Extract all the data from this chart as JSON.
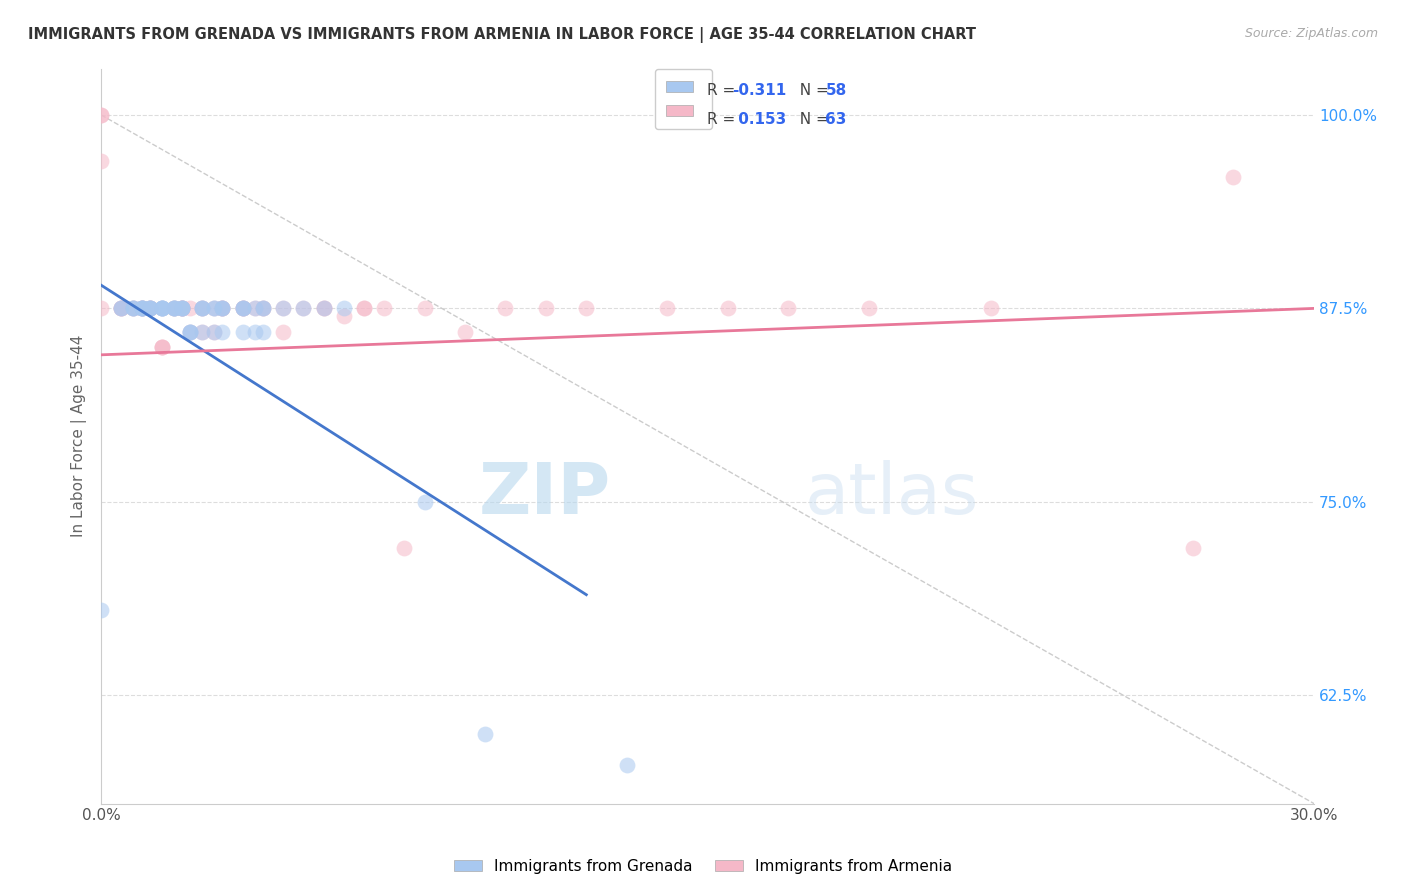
{
  "title": "IMMIGRANTS FROM GRENADA VS IMMIGRANTS FROM ARMENIA IN LABOR FORCE | AGE 35-44 CORRELATION CHART",
  "source": "Source: ZipAtlas.com",
  "ylabel": "In Labor Force | Age 35-44",
  "xlim": [
    0.0,
    0.3
  ],
  "ylim": [
    0.555,
    1.03
  ],
  "xticks": [
    0.0,
    0.05,
    0.1,
    0.15,
    0.2,
    0.25,
    0.3
  ],
  "xtick_labels": [
    "0.0%",
    "",
    "",
    "",
    "",
    "",
    "30.0%"
  ],
  "yticks": [
    0.625,
    0.75,
    0.875,
    1.0
  ],
  "ytick_labels": [
    "62.5%",
    "75.0%",
    "87.5%",
    "100.0%"
  ],
  "grenada_color": "#a8c8f0",
  "armenia_color": "#f5b8c8",
  "grenada_line_color": "#4477cc",
  "armenia_line_color": "#e87899",
  "grenada_R": -0.311,
  "grenada_N": 58,
  "armenia_R": 0.153,
  "armenia_N": 63,
  "legend_label_grenada": "Immigrants from Grenada",
  "legend_label_armenia": "Immigrants from Armenia",
  "watermark_zip": "ZIP",
  "watermark_atlas": "atlas",
  "background_color": "#ffffff",
  "grid_color": "#dddddd",
  "axis_color": "#cccccc",
  "title_color": "#333333",
  "source_color": "#aaaaaa",
  "tick_color": "#3399ff",
  "scatter_alpha": 0.55,
  "scatter_size": 130,
  "grenada_x": [
    0.0,
    0.005,
    0.005,
    0.008,
    0.008,
    0.008,
    0.01,
    0.01,
    0.01,
    0.01,
    0.01,
    0.012,
    0.012,
    0.012,
    0.012,
    0.015,
    0.015,
    0.015,
    0.015,
    0.015,
    0.018,
    0.018,
    0.018,
    0.018,
    0.02,
    0.02,
    0.02,
    0.02,
    0.022,
    0.022,
    0.022,
    0.025,
    0.025,
    0.025,
    0.025,
    0.028,
    0.028,
    0.028,
    0.03,
    0.03,
    0.03,
    0.03,
    0.035,
    0.035,
    0.035,
    0.035,
    0.038,
    0.038,
    0.04,
    0.04,
    0.04,
    0.045,
    0.05,
    0.055,
    0.06,
    0.08,
    0.095,
    0.13
  ],
  "grenada_y": [
    0.68,
    0.875,
    0.875,
    0.875,
    0.875,
    0.875,
    0.875,
    0.875,
    0.875,
    0.875,
    0.875,
    0.875,
    0.875,
    0.875,
    0.875,
    0.875,
    0.875,
    0.875,
    0.875,
    0.875,
    0.875,
    0.875,
    0.875,
    0.875,
    0.875,
    0.875,
    0.875,
    0.875,
    0.86,
    0.86,
    0.86,
    0.875,
    0.875,
    0.875,
    0.86,
    0.875,
    0.875,
    0.86,
    0.875,
    0.875,
    0.875,
    0.86,
    0.875,
    0.875,
    0.875,
    0.86,
    0.875,
    0.86,
    0.875,
    0.875,
    0.86,
    0.875,
    0.875,
    0.875,
    0.875,
    0.75,
    0.6,
    0.58
  ],
  "armenia_x": [
    0.0,
    0.0,
    0.0,
    0.0,
    0.005,
    0.005,
    0.005,
    0.008,
    0.008,
    0.01,
    0.01,
    0.01,
    0.012,
    0.012,
    0.012,
    0.015,
    0.015,
    0.015,
    0.015,
    0.018,
    0.018,
    0.02,
    0.02,
    0.02,
    0.02,
    0.022,
    0.022,
    0.025,
    0.025,
    0.025,
    0.028,
    0.028,
    0.03,
    0.03,
    0.03,
    0.035,
    0.035,
    0.035,
    0.038,
    0.04,
    0.04,
    0.045,
    0.045,
    0.05,
    0.055,
    0.055,
    0.06,
    0.065,
    0.065,
    0.07,
    0.075,
    0.08,
    0.09,
    0.1,
    0.11,
    0.12,
    0.14,
    0.155,
    0.17,
    0.19,
    0.22,
    0.27,
    0.28
  ],
  "armenia_y": [
    0.97,
    1.0,
    1.0,
    0.875,
    0.875,
    0.875,
    0.875,
    0.875,
    0.875,
    0.875,
    0.875,
    0.875,
    0.875,
    0.875,
    0.875,
    0.875,
    0.85,
    0.85,
    0.85,
    0.875,
    0.875,
    0.875,
    0.875,
    0.875,
    0.875,
    0.875,
    0.86,
    0.875,
    0.875,
    0.86,
    0.875,
    0.86,
    0.875,
    0.875,
    0.875,
    0.875,
    0.875,
    0.875,
    0.875,
    0.875,
    0.875,
    0.875,
    0.86,
    0.875,
    0.875,
    0.875,
    0.87,
    0.875,
    0.875,
    0.875,
    0.72,
    0.875,
    0.86,
    0.875,
    0.875,
    0.875,
    0.875,
    0.875,
    0.875,
    0.875,
    0.875,
    0.72,
    0.96
  ],
  "grenada_trend_x": [
    0.0,
    0.12
  ],
  "grenada_trend_y": [
    0.89,
    0.69
  ],
  "armenia_trend_x": [
    0.0,
    0.3
  ],
  "armenia_trend_y": [
    0.845,
    0.875
  ]
}
